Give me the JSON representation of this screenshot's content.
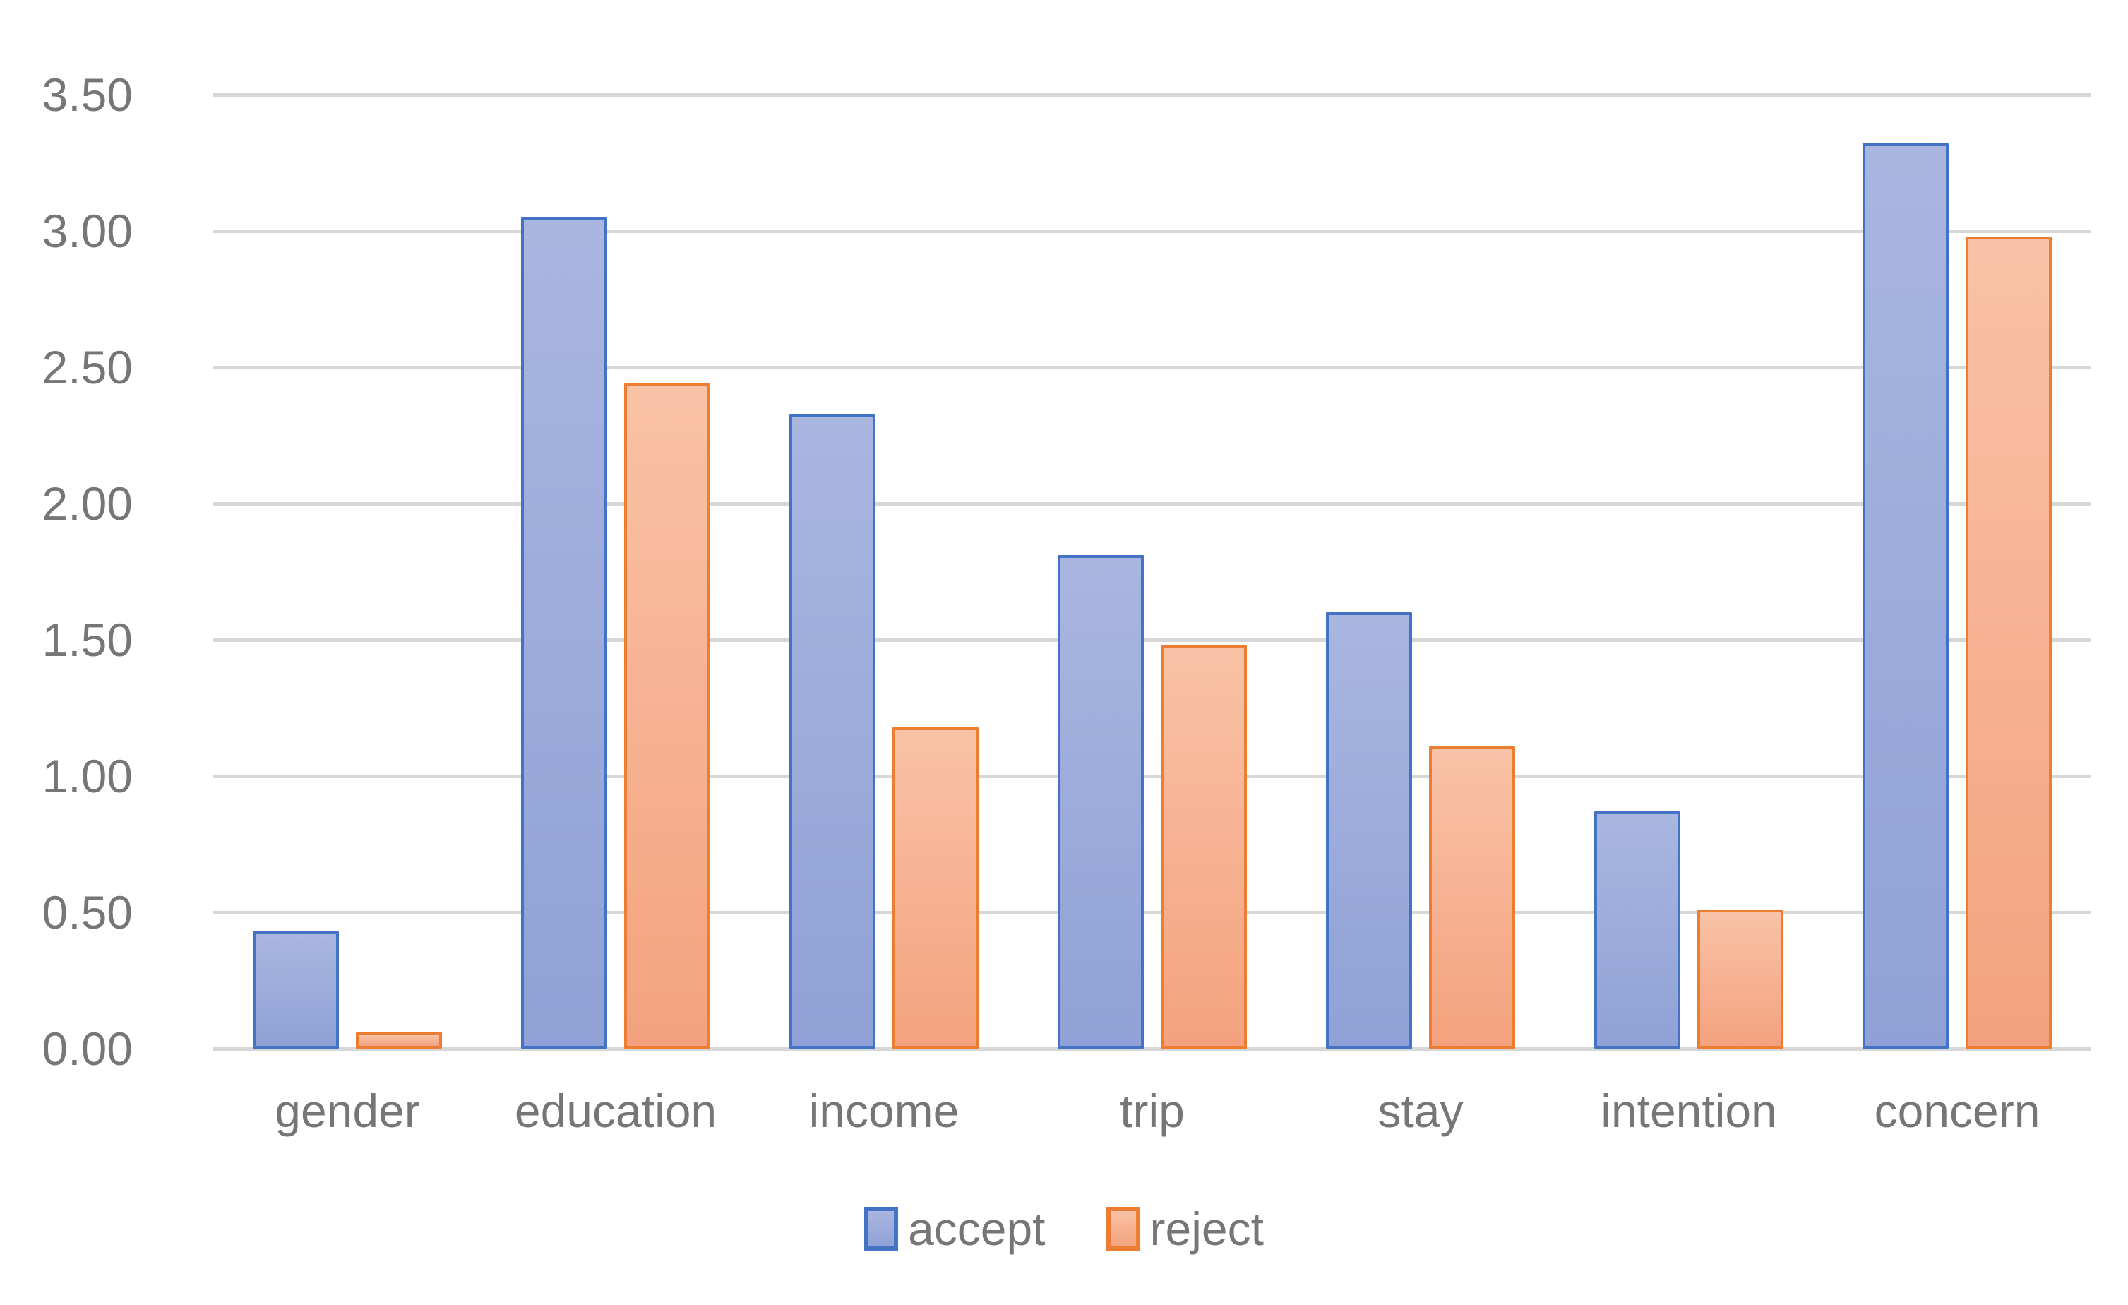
{
  "chart_data": {
    "type": "bar",
    "title": "",
    "xlabel": "",
    "ylabel": "",
    "categories": [
      "gender",
      "education",
      "income",
      "trip",
      "stay",
      "intention",
      "concern"
    ],
    "series": [
      {
        "name": "accept",
        "values": [
          0.43,
          3.05,
          2.33,
          1.81,
          1.6,
          0.87,
          3.32
        ],
        "fill_top": "#a9b6e0",
        "fill_bottom": "#8fa1d6",
        "border": "#4472c4"
      },
      {
        "name": "reject",
        "values": [
          0.06,
          2.44,
          1.18,
          1.48,
          1.11,
          0.51,
          2.98
        ],
        "fill_top": "#f9c2a6",
        "fill_bottom": "#f4a27e",
        "border": "#ed7d31"
      }
    ],
    "ylim": [
      0,
      3.5
    ],
    "ytick_step": 0.5,
    "ytick_labels": [
      "0.00",
      "0.50",
      "1.00",
      "1.50",
      "2.00",
      "2.50",
      "3.00",
      "3.50"
    ],
    "grid": true,
    "legend_position": "bottom"
  },
  "colors": {
    "gridline": "#d7d7d7",
    "axis_text": "#767676",
    "background": "#ffffff"
  }
}
